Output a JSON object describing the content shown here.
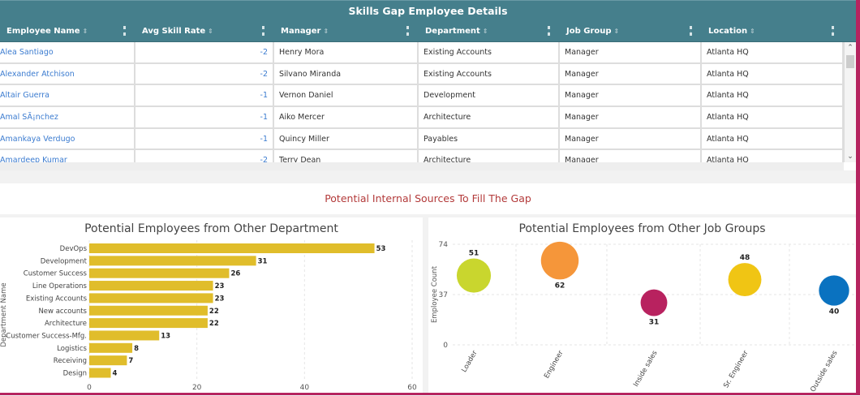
{
  "table": {
    "title": "Skills Gap Employee Details",
    "columns": [
      "Employee Name",
      "Avg Skill Rate",
      "Manager",
      "Department",
      "Job Group",
      "Location"
    ],
    "rows": [
      [
        "Alea Santiago",
        "-2",
        "Henry Mora",
        "Existing Accounts",
        "Manager",
        "Atlanta HQ"
      ],
      [
        "Alexander Atchison",
        "-2",
        "Silvano Miranda",
        "Existing Accounts",
        "Manager",
        "Atlanta HQ"
      ],
      [
        "Altair Guerra",
        "-1",
        "Vernon Daniel",
        "Development",
        "Manager",
        "Atlanta HQ"
      ],
      [
        "Amal SÃ¡nchez",
        "-1",
        "Aiko Mercer",
        "Architecture",
        "Manager",
        "Atlanta HQ"
      ],
      [
        "Amankaya Verdugo",
        "-1",
        "Quincy Miller",
        "Payables",
        "Manager",
        "Atlanta HQ"
      ],
      [
        "Amardeep Kumar",
        "-2",
        "Terry Dean",
        "Architecture",
        "Manager",
        "Atlanta HQ"
      ]
    ]
  },
  "section_title": "Potential Internal Sources To Fill The Gap",
  "chart_data": [
    {
      "type": "bar",
      "orientation": "horizontal",
      "title": "Potential Employees from Other Department",
      "ylabel": "Department Name",
      "xlabel": "",
      "categories": [
        "DevOps",
        "Development",
        "Customer Success",
        "Line Operations",
        "Existing Accounts",
        "New accounts",
        "Architecture",
        "Customer Success-Mfg.",
        "Logistics",
        "Receiving",
        "Design"
      ],
      "values": [
        53,
        31,
        26,
        23,
        23,
        22,
        22,
        13,
        8,
        7,
        4
      ],
      "xlim": [
        0,
        60
      ],
      "xticks": [
        0,
        20,
        40,
        60
      ],
      "color": "#e0bd2b",
      "grid": true
    },
    {
      "type": "scatter",
      "subtype": "bubble",
      "title": "Potential Employees from Other Job Groups",
      "ylabel": "Employee Count",
      "categories": [
        "Loader",
        "Engineer",
        "Inside sales",
        "Sr. Engineer",
        "Outside sales"
      ],
      "values": [
        51,
        62,
        31,
        48,
        40
      ],
      "colors": [
        "#c9d62e",
        "#f5963a",
        "#b8225f",
        "#f0c514",
        "#0a72c0"
      ],
      "ylim": [
        0,
        74
      ],
      "yticks": [
        0,
        37,
        74
      ],
      "grid": true
    }
  ]
}
